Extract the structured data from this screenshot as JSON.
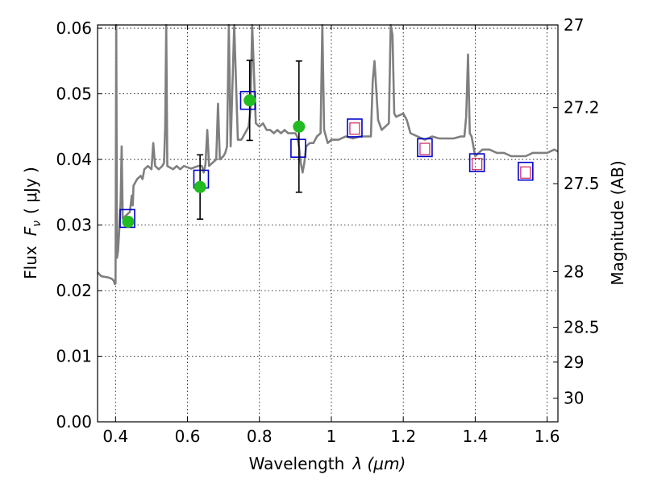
{
  "chart_data": {
    "type": "scatter",
    "title": "",
    "xlabel_text": "Wavelength",
    "xlabel_symbol": "λ (μm)",
    "ylabel_text": "Flux",
    "ylabel_symbol": "F",
    "ylabel_subscript": "ν",
    "ylabel_unit": "( μJy )",
    "y2label": "Magnitude (AB)",
    "xlim": [
      0.35,
      1.63
    ],
    "ylim": [
      0.0,
      0.0605
    ],
    "grid": true,
    "x_ticks": [
      {
        "value": 0.4,
        "label": "0.4"
      },
      {
        "value": 0.6,
        "label": "0.6"
      },
      {
        "value": 0.8,
        "label": "0.8"
      },
      {
        "value": 1.0,
        "label": "1"
      },
      {
        "value": 1.2,
        "label": "1.2"
      },
      {
        "value": 1.4,
        "label": "1.4"
      },
      {
        "value": 1.6,
        "label": "1.6"
      }
    ],
    "y_ticks": [
      {
        "value": 0.0,
        "label": "0.00"
      },
      {
        "value": 0.01,
        "label": "0.01"
      },
      {
        "value": 0.02,
        "label": "0.02"
      },
      {
        "value": 0.03,
        "label": "0.03"
      },
      {
        "value": 0.04,
        "label": "0.04"
      },
      {
        "value": 0.05,
        "label": "0.05"
      },
      {
        "value": 0.06,
        "label": "0.06"
      }
    ],
    "y2_ticks": [
      {
        "label": "27",
        "flux": 0.0605
      },
      {
        "label": "27.2",
        "flux": 0.0479
      },
      {
        "label": "27.5",
        "flux": 0.0363
      },
      {
        "label": "28",
        "flux": 0.0229
      },
      {
        "label": "28.5",
        "flux": 0.0144
      },
      {
        "label": "29",
        "flux": 0.0091
      },
      {
        "label": "30",
        "flux": 0.0036
      }
    ],
    "model_spectrum": {
      "color": "#7f7f7f",
      "points": [
        [
          0.35,
          0.0228
        ],
        [
          0.36,
          0.0222
        ],
        [
          0.37,
          0.0221
        ],
        [
          0.38,
          0.022
        ],
        [
          0.39,
          0.0218
        ],
        [
          0.395,
          0.0215
        ],
        [
          0.398,
          0.021
        ],
        [
          0.4,
          0.0211
        ],
        [
          0.402,
          0.0605
        ],
        [
          0.404,
          0.025
        ],
        [
          0.407,
          0.026
        ],
        [
          0.41,
          0.029
        ],
        [
          0.414,
          0.0335
        ],
        [
          0.417,
          0.042
        ],
        [
          0.42,
          0.031
        ],
        [
          0.43,
          0.0315
        ],
        [
          0.44,
          0.032
        ],
        [
          0.445,
          0.0345
        ],
        [
          0.448,
          0.033
        ],
        [
          0.45,
          0.036
        ],
        [
          0.46,
          0.037
        ],
        [
          0.47,
          0.0375
        ],
        [
          0.475,
          0.037
        ],
        [
          0.48,
          0.0385
        ],
        [
          0.49,
          0.039
        ],
        [
          0.5,
          0.0385
        ],
        [
          0.505,
          0.0425
        ],
        [
          0.51,
          0.039
        ],
        [
          0.52,
          0.0385
        ],
        [
          0.53,
          0.039
        ],
        [
          0.535,
          0.0395
        ],
        [
          0.538,
          0.045
        ],
        [
          0.541,
          0.0605
        ],
        [
          0.544,
          0.039
        ],
        [
          0.55,
          0.0388
        ],
        [
          0.56,
          0.0385
        ],
        [
          0.57,
          0.039
        ],
        [
          0.58,
          0.0385
        ],
        [
          0.59,
          0.039
        ],
        [
          0.6,
          0.0388
        ],
        [
          0.61,
          0.0386
        ],
        [
          0.62,
          0.0388
        ],
        [
          0.63,
          0.039
        ],
        [
          0.64,
          0.039
        ],
        [
          0.645,
          0.038
        ],
        [
          0.65,
          0.0392
        ],
        [
          0.655,
          0.0445
        ],
        [
          0.66,
          0.039
        ],
        [
          0.67,
          0.0395
        ],
        [
          0.68,
          0.04
        ],
        [
          0.685,
          0.0485
        ],
        [
          0.69,
          0.04
        ],
        [
          0.7,
          0.0405
        ],
        [
          0.705,
          0.041
        ],
        [
          0.71,
          0.042
        ],
        [
          0.715,
          0.0605
        ],
        [
          0.72,
          0.042
        ],
        [
          0.73,
          0.0605
        ],
        [
          0.74,
          0.043
        ],
        [
          0.75,
          0.043
        ],
        [
          0.76,
          0.044
        ],
        [
          0.77,
          0.045
        ],
        [
          0.775,
          0.0475
        ],
        [
          0.78,
          0.0605
        ],
        [
          0.79,
          0.0455
        ],
        [
          0.8,
          0.045
        ],
        [
          0.81,
          0.0455
        ],
        [
          0.82,
          0.0445
        ],
        [
          0.83,
          0.0445
        ],
        [
          0.84,
          0.044
        ],
        [
          0.85,
          0.0445
        ],
        [
          0.86,
          0.044
        ],
        [
          0.87,
          0.0445
        ],
        [
          0.88,
          0.044
        ],
        [
          0.89,
          0.044
        ],
        [
          0.9,
          0.044
        ],
        [
          0.905,
          0.0435
        ],
        [
          0.91,
          0.042
        ],
        [
          0.915,
          0.0395
        ],
        [
          0.92,
          0.038
        ],
        [
          0.925,
          0.0395
        ],
        [
          0.93,
          0.042
        ],
        [
          0.94,
          0.0425
        ],
        [
          0.95,
          0.0425
        ],
        [
          0.96,
          0.0435
        ],
        [
          0.97,
          0.044
        ],
        [
          0.975,
          0.0605
        ],
        [
          0.98,
          0.0445
        ],
        [
          0.99,
          0.0425
        ],
        [
          1.0,
          0.043
        ],
        [
          1.02,
          0.043
        ],
        [
          1.04,
          0.0435
        ],
        [
          1.06,
          0.0432
        ],
        [
          1.08,
          0.0435
        ],
        [
          1.1,
          0.0435
        ],
        [
          1.11,
          0.0435
        ],
        [
          1.115,
          0.052
        ],
        [
          1.12,
          0.055
        ],
        [
          1.13,
          0.046
        ],
        [
          1.14,
          0.0445
        ],
        [
          1.16,
          0.0455
        ],
        [
          1.165,
          0.0605
        ],
        [
          1.17,
          0.059
        ],
        [
          1.175,
          0.047
        ],
        [
          1.18,
          0.0465
        ],
        [
          1.2,
          0.047
        ],
        [
          1.21,
          0.046
        ],
        [
          1.22,
          0.044
        ],
        [
          1.24,
          0.0435
        ],
        [
          1.26,
          0.043
        ],
        [
          1.28,
          0.0435
        ],
        [
          1.3,
          0.0432
        ],
        [
          1.32,
          0.0432
        ],
        [
          1.34,
          0.0432
        ],
        [
          1.36,
          0.0435
        ],
        [
          1.37,
          0.0435
        ],
        [
          1.375,
          0.0465
        ],
        [
          1.38,
          0.056
        ],
        [
          1.385,
          0.044
        ],
        [
          1.39,
          0.0435
        ],
        [
          1.4,
          0.0405
        ],
        [
          1.42,
          0.0415
        ],
        [
          1.44,
          0.0415
        ],
        [
          1.46,
          0.041
        ],
        [
          1.48,
          0.041
        ],
        [
          1.5,
          0.0405
        ],
        [
          1.52,
          0.0405
        ],
        [
          1.54,
          0.0405
        ],
        [
          1.56,
          0.041
        ],
        [
          1.58,
          0.041
        ],
        [
          1.6,
          0.041
        ],
        [
          1.62,
          0.0415
        ],
        [
          1.63,
          0.0412
        ]
      ]
    },
    "observed_points": {
      "color": "#22bb22",
      "points": [
        {
          "x": 0.435,
          "y": 0.0305,
          "yerr": null
        },
        {
          "x": 0.635,
          "y": 0.0358,
          "yerr": [
            0.0049,
            0.0049
          ]
        },
        {
          "x": 0.773,
          "y": 0.049,
          "yerr": [
            0.0061,
            0.0061
          ]
        },
        {
          "x": 0.91,
          "y": 0.045,
          "yerr": [
            0.01,
            0.01
          ]
        }
      ]
    },
    "model_band_boxes": {
      "color": "#0000cc",
      "points": [
        {
          "x": 0.433,
          "y": 0.031
        },
        {
          "x": 0.638,
          "y": 0.037
        },
        {
          "x": 0.768,
          "y": 0.049
        },
        {
          "x": 0.908,
          "y": 0.0417
        },
        {
          "x": 1.065,
          "y": 0.0448
        },
        {
          "x": 1.26,
          "y": 0.0418
        },
        {
          "x": 1.405,
          "y": 0.0395
        },
        {
          "x": 1.54,
          "y": 0.0382
        }
      ]
    },
    "inner_boxes": {
      "color": "#cc2255",
      "points": [
        {
          "x": 1.065,
          "y": 0.0447
        },
        {
          "x": 1.26,
          "y": 0.0416
        },
        {
          "x": 1.405,
          "y": 0.0393
        },
        {
          "x": 1.54,
          "y": 0.038
        }
      ]
    }
  }
}
